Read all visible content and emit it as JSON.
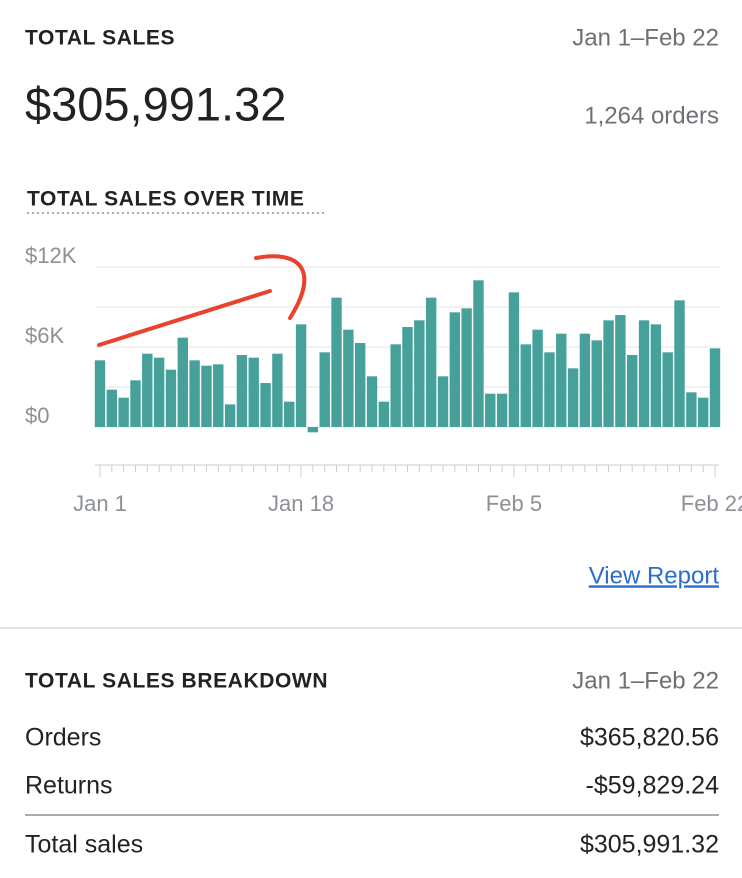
{
  "header": {
    "title": "TOTAL SALES",
    "date_range": "Jan 1–Feb 22",
    "total": "$305,991.32",
    "orders": "1,264 orders"
  },
  "chart_data": {
    "type": "bar",
    "title": "TOTAL SALES OVER TIME",
    "color": "#47a19b",
    "categories": [
      "Jan 1",
      null,
      null,
      null,
      null,
      null,
      null,
      null,
      null,
      null,
      null,
      null,
      null,
      null,
      null,
      null,
      null,
      "Jan 18",
      null,
      null,
      null,
      null,
      null,
      null,
      null,
      null,
      null,
      null,
      null,
      null,
      null,
      null,
      null,
      null,
      null,
      "Feb 5",
      null,
      null,
      null,
      null,
      null,
      null,
      null,
      null,
      null,
      null,
      null,
      null,
      null,
      null,
      null,
      null,
      "Feb 22"
    ],
    "values": [
      5000,
      2800,
      2200,
      3500,
      5500,
      5200,
      4300,
      6700,
      5000,
      4600,
      4700,
      1700,
      5400,
      5200,
      3300,
      5500,
      1900,
      7700,
      -400,
      5600,
      9700,
      7300,
      6300,
      3800,
      1900,
      6200,
      7500,
      8000,
      9700,
      3800,
      8600,
      8900,
      11000,
      2500,
      2500,
      10100,
      6200,
      7300,
      5600,
      7000,
      4400,
      7000,
      6500,
      8000,
      8400,
      5400,
      8000,
      7700,
      5600,
      9500,
      2600,
      2200,
      5900
    ],
    "ylim": [
      0,
      12000
    ],
    "yticks": [
      {
        "value": 0,
        "label": "$0"
      },
      {
        "value": 6000,
        "label": "$6K"
      },
      {
        "value": 12000,
        "label": "$12K"
      }
    ],
    "ygrid": [
      0,
      3000,
      6000,
      9000,
      12000
    ],
    "grid": true
  },
  "link": "View Report",
  "breakdown": {
    "title": "TOTAL SALES BREAKDOWN",
    "date_range": "Jan 1–Feb 22",
    "rows": [
      [
        "Orders",
        "$365,820.56"
      ],
      [
        "Returns",
        "-$59,829.24"
      ]
    ],
    "total": [
      "Total sales",
      "$305,991.32"
    ]
  }
}
